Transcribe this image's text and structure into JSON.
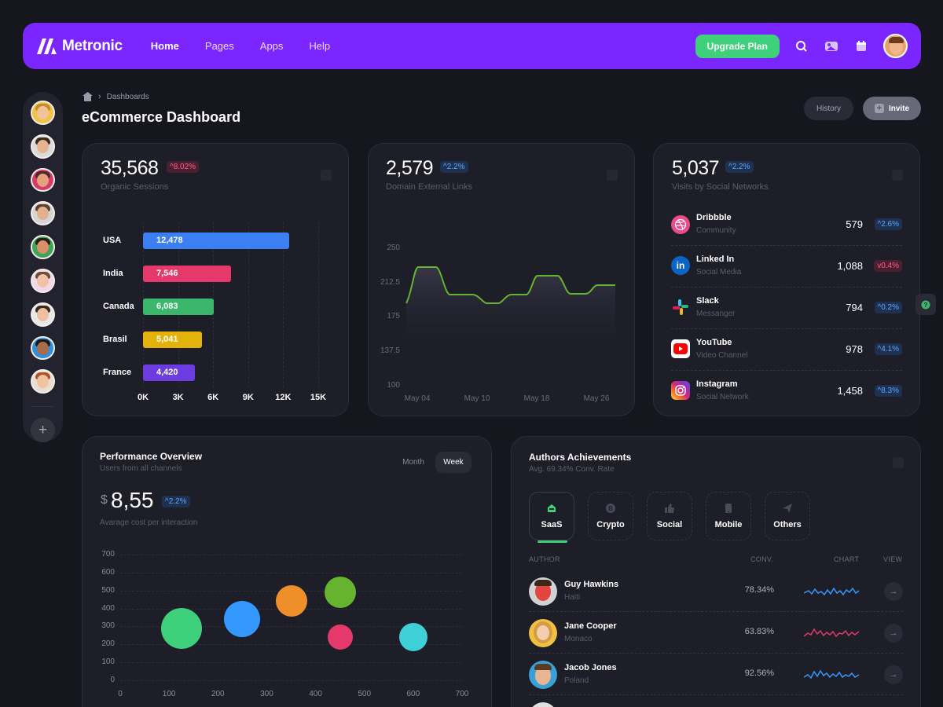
{
  "brand": {
    "name": "Metronic"
  },
  "nav": {
    "home": "Home",
    "pages": "Pages",
    "apps": "Apps",
    "help": "Help"
  },
  "topbar": {
    "upgrade_label": "Upgrade Plan"
  },
  "breadcrumb": {
    "current": "Dashboards"
  },
  "page": {
    "title": "eCommerce Dashboard",
    "history_label": "History",
    "invite_label": "Invite"
  },
  "organic": {
    "value": "35,568",
    "change": "8.02%",
    "label": "Organic Sessions",
    "chart_data": {
      "type": "bar",
      "categories": [
        "USA",
        "India",
        "Canada",
        "Brasil",
        "France"
      ],
      "values": [
        12478,
        7546,
        6083,
        5041,
        4420
      ],
      "value_labels": [
        "12,478",
        "7,546",
        "6,083",
        "5,041",
        "4,420"
      ],
      "colors": [
        "#3b7ff2",
        "#e5396c",
        "#3ab76a",
        "#e3b30c",
        "#6c3ce0"
      ],
      "xticks": [
        "0K",
        "3K",
        "6K",
        "9K",
        "12K",
        "15K"
      ],
      "xlim": [
        0,
        15000
      ]
    }
  },
  "links": {
    "value": "2,579",
    "change": "2.2%",
    "label": "Domain External Links",
    "chart_data": {
      "type": "area",
      "x": [
        "May 04",
        "May 10",
        "May 18",
        "May 26"
      ],
      "yticks": [
        "250",
        "212.5",
        "175",
        "137.5",
        "100"
      ],
      "ylim": [
        100,
        250
      ]
    }
  },
  "social": {
    "value": "5,037",
    "change": "2.2%",
    "label": "Visits by Social Networks",
    "items": [
      {
        "name": "Dribbble",
        "sub": "Community",
        "value": "579",
        "change": "2.6%"
      },
      {
        "name": "Linked In",
        "sub": "Social Media",
        "value": "1,088",
        "change": "0.4%"
      },
      {
        "name": "Slack",
        "sub": "Messanger",
        "value": "794",
        "change": "0.2%"
      },
      {
        "name": "YouTube",
        "sub": "Video Channel",
        "value": "978",
        "change": "4.1%"
      },
      {
        "name": "Instagram",
        "sub": "Social Network",
        "value": "1,458",
        "change": "8.3%"
      }
    ]
  },
  "performance": {
    "title": "Performance Overview",
    "subtitle": "Users from all channels",
    "currency": "$",
    "value": "8,55",
    "change": "2.2%",
    "label": "Avarage cost per interaction",
    "tab_month": "Month",
    "tab_week": "Week",
    "chart_data": {
      "type": "scatter",
      "xticks": [
        "0",
        "100",
        "200",
        "300",
        "400",
        "500",
        "600",
        "700"
      ],
      "yticks": [
        "700",
        "600",
        "500",
        "400",
        "300",
        "200",
        "100",
        "0"
      ],
      "xlim": [
        0,
        700
      ],
      "ylim": [
        0,
        700
      ],
      "points": [
        {
          "x": 125,
          "y": 290,
          "r": 26,
          "color": "#3ed07a"
        },
        {
          "x": 250,
          "y": 340,
          "r": 23,
          "color": "#3399ff"
        },
        {
          "x": 350,
          "y": 440,
          "r": 20,
          "color": "#ee8f2c"
        },
        {
          "x": 450,
          "y": 490,
          "r": 20,
          "color": "#65b32e"
        },
        {
          "x": 450,
          "y": 240,
          "r": 16,
          "color": "#e5396c"
        },
        {
          "x": 600,
          "y": 240,
          "r": 18,
          "color": "#3fcfd6"
        }
      ]
    }
  },
  "authors": {
    "title": "Authors Achievements",
    "subtitle": "Avg. 69.34% Conv. Rate",
    "tabs": [
      "SaaS",
      "Crypto",
      "Social",
      "Mobile",
      "Others"
    ],
    "col_author": "AUTHOR",
    "col_conv": "CONV.",
    "col_chart": "CHART",
    "col_view": "VIEW",
    "rows": [
      {
        "name": "Guy Hawkins",
        "loc": "Haiti",
        "conv": "78.34%",
        "color": "#3399ff"
      },
      {
        "name": "Jane Cooper",
        "loc": "Monaco",
        "conv": "63.83%",
        "color": "#e5396c"
      },
      {
        "name": "Jacob Jones",
        "loc": "Poland",
        "conv": "92.56%",
        "color": "#3399ff"
      }
    ]
  }
}
